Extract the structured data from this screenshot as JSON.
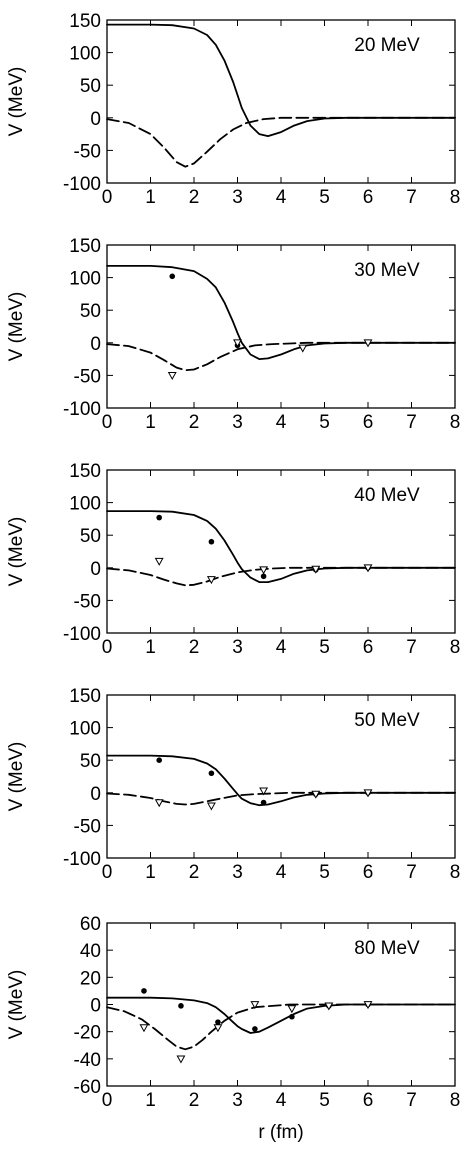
{
  "chart_data": [
    {
      "type": "line",
      "annotation": "20 MeV",
      "xlabel": "",
      "ylabel": "V (MeV)",
      "xlim": [
        0,
        8
      ],
      "ylim": [
        -100,
        150
      ],
      "xticks": [
        "0",
        "1",
        "2",
        "3",
        "4",
        "5",
        "6",
        "7",
        "8"
      ],
      "yticks": [
        "150",
        "100",
        "50",
        "0",
        "-50",
        "-100"
      ],
      "grid": false,
      "legend": "none",
      "series": [
        {
          "style": "solid",
          "x": [
            0,
            0.5,
            1,
            1.5,
            2,
            2.3,
            2.5,
            2.7,
            2.9,
            3.0,
            3.1,
            3.3,
            3.5,
            3.7,
            4.0,
            4.3,
            4.6,
            5.0,
            5.5,
            6,
            7,
            8
          ],
          "y": [
            143,
            143,
            143,
            142,
            137,
            127,
            112,
            88,
            55,
            35,
            15,
            -12,
            -25,
            -28,
            -22,
            -12,
            -5,
            -1,
            0,
            0,
            0,
            0
          ]
        },
        {
          "style": "dashed",
          "x": [
            0,
            0.5,
            1,
            1.3,
            1.6,
            1.8,
            2.0,
            2.3,
            2.6,
            2.9,
            3.2,
            3.6,
            4.0,
            4.5,
            5,
            6,
            7,
            8
          ],
          "y": [
            -2,
            -8,
            -25,
            -45,
            -68,
            -75,
            -70,
            -52,
            -33,
            -18,
            -8,
            -2,
            0,
            0,
            0,
            0,
            0,
            0
          ]
        }
      ],
      "points": []
    },
    {
      "type": "line",
      "annotation": "30 MeV",
      "xlabel": "",
      "ylabel": "V (MeV)",
      "xlim": [
        0,
        8
      ],
      "ylim": [
        -100,
        150
      ],
      "xticks": [
        "0",
        "1",
        "2",
        "3",
        "4",
        "5",
        "6",
        "7",
        "8"
      ],
      "yticks": [
        "150",
        "100",
        "50",
        "0",
        "-50",
        "-100"
      ],
      "grid": false,
      "legend": "none",
      "series": [
        {
          "style": "solid",
          "x": [
            0,
            0.5,
            1,
            1.5,
            2,
            2.3,
            2.5,
            2.7,
            2.9,
            3.0,
            3.1,
            3.3,
            3.5,
            3.7,
            4.0,
            4.3,
            4.6,
            5.0,
            5.5,
            6,
            7,
            8
          ],
          "y": [
            118,
            118,
            118,
            116,
            110,
            98,
            85,
            62,
            32,
            15,
            0,
            -18,
            -25,
            -24,
            -18,
            -10,
            -4,
            -1,
            0,
            0,
            0,
            0
          ]
        },
        {
          "style": "dashed",
          "x": [
            0,
            0.5,
            1,
            1.3,
            1.6,
            1.8,
            2.0,
            2.3,
            2.6,
            3.0,
            3.4,
            3.8,
            4.2,
            4.6,
            5,
            6,
            7,
            8
          ],
          "y": [
            -2,
            -5,
            -15,
            -26,
            -38,
            -42,
            -41,
            -33,
            -22,
            -10,
            -4,
            -2,
            -1,
            0,
            0,
            0,
            0,
            0
          ]
        }
      ],
      "points": [
        {
          "marker": "dot",
          "x": [
            1.5,
            3.0,
            6.0
          ],
          "y": [
            102,
            -4,
            1
          ]
        },
        {
          "marker": "triangle",
          "x": [
            1.5,
            3.0,
            4.5,
            6.0
          ],
          "y": [
            -50,
            0,
            -8,
            0
          ]
        }
      ]
    },
    {
      "type": "line",
      "annotation": "40 MeV",
      "xlabel": "",
      "ylabel": "V (MeV)",
      "xlim": [
        0,
        8
      ],
      "ylim": [
        -100,
        150
      ],
      "xticks": [
        "0",
        "1",
        "2",
        "3",
        "4",
        "5",
        "6",
        "7",
        "8"
      ],
      "yticks": [
        "150",
        "100",
        "50",
        "0",
        "-50",
        "-100"
      ],
      "grid": false,
      "legend": "none",
      "series": [
        {
          "style": "solid",
          "x": [
            0,
            0.5,
            1,
            1.5,
            2,
            2.3,
            2.5,
            2.7,
            2.9,
            3.0,
            3.1,
            3.3,
            3.5,
            3.7,
            4.0,
            4.3,
            4.6,
            5.0,
            5.5,
            6,
            7,
            8
          ],
          "y": [
            87,
            87,
            87,
            86,
            81,
            72,
            60,
            42,
            20,
            8,
            -2,
            -15,
            -22,
            -22,
            -17,
            -9,
            -4,
            -1,
            0,
            0,
            0,
            0
          ]
        },
        {
          "style": "dashed",
          "x": [
            0,
            0.5,
            1,
            1.3,
            1.6,
            1.8,
            2.0,
            2.3,
            2.6,
            3.0,
            3.4,
            3.8,
            4.2,
            4.6,
            5,
            6,
            7,
            8
          ],
          "y": [
            -1,
            -4,
            -11,
            -18,
            -24,
            -27,
            -26,
            -21,
            -14,
            -7,
            -3,
            -1,
            0,
            0,
            0,
            0,
            0,
            0
          ]
        }
      ],
      "points": [
        {
          "marker": "dot",
          "x": [
            1.2,
            2.4,
            3.6,
            4.8,
            6.0
          ],
          "y": [
            77,
            40,
            -13,
            -3,
            0
          ]
        },
        {
          "marker": "triangle",
          "x": [
            1.2,
            2.4,
            3.6,
            4.8,
            6.0
          ],
          "y": [
            10,
            -18,
            -3,
            -2,
            0
          ]
        }
      ]
    },
    {
      "type": "line",
      "annotation": "50 MeV",
      "xlabel": "",
      "ylabel": "V (MeV)",
      "xlim": [
        0,
        8
      ],
      "ylim": [
        -100,
        150
      ],
      "xticks": [
        "0",
        "1",
        "2",
        "3",
        "4",
        "5",
        "6",
        "7",
        "8"
      ],
      "yticks": [
        "150",
        "100",
        "50",
        "0",
        "-50",
        "-100"
      ],
      "grid": false,
      "legend": "none",
      "series": [
        {
          "style": "solid",
          "x": [
            0,
            0.5,
            1,
            1.5,
            2,
            2.3,
            2.5,
            2.7,
            2.9,
            3.0,
            3.1,
            3.3,
            3.5,
            3.7,
            4.0,
            4.3,
            4.6,
            5.0,
            5.5,
            6,
            7,
            8
          ],
          "y": [
            57,
            57,
            57,
            56,
            52,
            45,
            36,
            22,
            6,
            -2,
            -9,
            -16,
            -19,
            -18,
            -13,
            -7,
            -3,
            -1,
            0,
            0,
            0,
            0
          ]
        },
        {
          "style": "dashed",
          "x": [
            0,
            0.5,
            1,
            1.3,
            1.6,
            1.8,
            2.0,
            2.3,
            2.6,
            3.0,
            3.4,
            3.8,
            4.2,
            4.6,
            5,
            6,
            7,
            8
          ],
          "y": [
            -1,
            -3,
            -8,
            -13,
            -17,
            -18,
            -17,
            -13,
            -9,
            -4,
            -2,
            -1,
            0,
            0,
            0,
            0,
            0,
            0
          ]
        }
      ],
      "points": [
        {
          "marker": "dot",
          "x": [
            1.2,
            2.4,
            3.6,
            4.8,
            6.0
          ],
          "y": [
            50,
            30,
            -15,
            -2,
            0
          ]
        },
        {
          "marker": "triangle",
          "x": [
            1.2,
            2.4,
            3.6,
            4.8,
            6.0
          ],
          "y": [
            -15,
            -20,
            3,
            -2,
            0
          ]
        }
      ]
    },
    {
      "type": "line",
      "annotation": "80 MeV",
      "xlabel": "r (fm)",
      "ylabel": "V (MeV)",
      "xlim": [
        0,
        8
      ],
      "ylim": [
        -60,
        60
      ],
      "xticks": [
        "0",
        "1",
        "2",
        "3",
        "4",
        "5",
        "6",
        "7",
        "8"
      ],
      "yticks": [
        "60",
        "40",
        "20",
        "0",
        "-20",
        "-40",
        "-60"
      ],
      "grid": false,
      "legend": "none",
      "series": [
        {
          "style": "solid",
          "x": [
            0,
            0.5,
            1,
            1.5,
            2,
            2.3,
            2.5,
            2.7,
            2.9,
            3.0,
            3.1,
            3.3,
            3.5,
            3.7,
            4.0,
            4.3,
            4.6,
            5.0,
            5.5,
            6,
            7,
            8
          ],
          "y": [
            5,
            5,
            5,
            4.5,
            3,
            1,
            -2,
            -7,
            -13,
            -16,
            -18,
            -21,
            -20,
            -17,
            -12,
            -7,
            -3,
            -1,
            0,
            0,
            0,
            0
          ]
        },
        {
          "style": "dashed",
          "x": [
            0,
            0.4,
            0.8,
            1.1,
            1.4,
            1.6,
            1.8,
            2.0,
            2.2,
            2.4,
            2.7,
            3.0,
            3.4,
            3.8,
            4.2,
            4.6,
            5,
            6,
            7,
            8
          ],
          "y": [
            -2,
            -5,
            -11,
            -18,
            -26,
            -31,
            -33,
            -31,
            -26,
            -20,
            -12,
            -6,
            -2,
            -1,
            0,
            0,
            0,
            0,
            0,
            0
          ]
        }
      ],
      "points": [
        {
          "marker": "dot",
          "x": [
            0.85,
            1.7,
            2.55,
            3.4,
            4.25,
            5.1,
            6.0
          ],
          "y": [
            10,
            -1,
            -13,
            -18,
            -9,
            -1,
            0
          ]
        },
        {
          "marker": "triangle",
          "x": [
            0.85,
            1.7,
            2.55,
            3.4,
            4.25,
            5.1,
            6.0
          ],
          "y": [
            -17,
            -40,
            -17,
            0,
            -3,
            -1,
            0
          ]
        }
      ]
    }
  ]
}
